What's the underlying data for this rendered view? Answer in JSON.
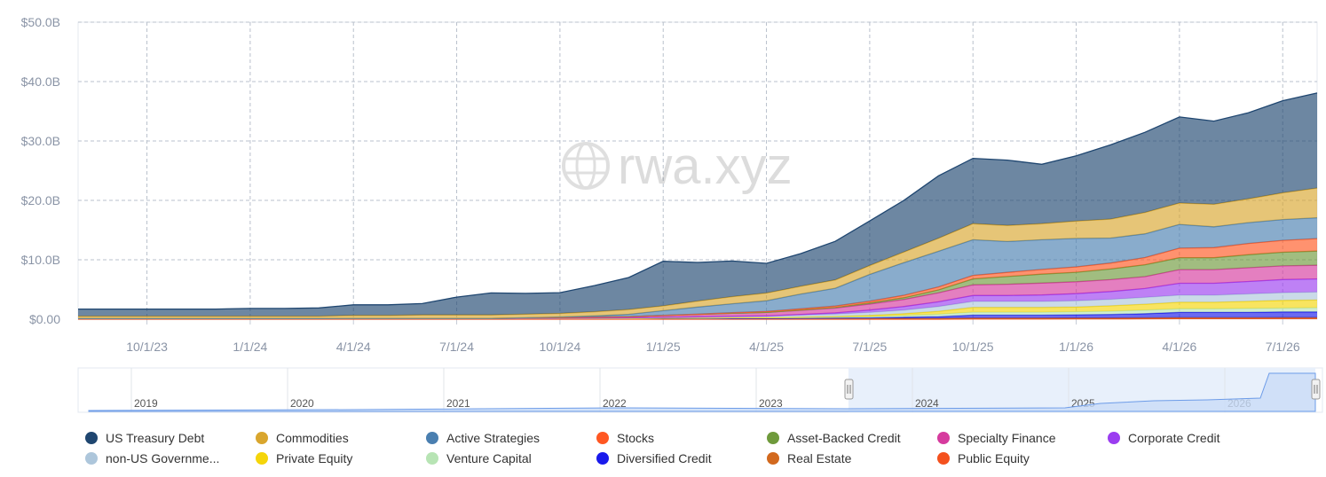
{
  "chart_data": {
    "type": "area",
    "stacked": true,
    "y_ticks": [
      "$0.00",
      "$10.0B",
      "$20.0B",
      "$30.0B",
      "$40.0B",
      "$50.0B"
    ],
    "ylim": [
      0,
      50
    ],
    "x_ticks": [
      "10/1/23",
      "1/1/24",
      "4/1/24",
      "7/1/24",
      "10/1/24",
      "1/1/25",
      "4/1/25",
      "7/1/25",
      "10/1/25",
      "1/1/26",
      "4/1/26",
      "7/1/26"
    ],
    "grid": true,
    "legend_position": "bottom",
    "watermark": "rwa.xyz",
    "navigator_years": [
      "2019",
      "2020",
      "2021",
      "2022",
      "2023",
      "2024",
      "2025",
      "2026"
    ],
    "x": [
      "8/1/23",
      "9/1/23",
      "10/1/23",
      "11/1/23",
      "12/1/23",
      "1/1/24",
      "2/1/24",
      "3/1/24",
      "4/1/24",
      "5/1/24",
      "6/1/24",
      "7/1/24",
      "8/1/24",
      "9/1/24",
      "10/1/24",
      "11/1/24",
      "12/1/24",
      "1/1/25",
      "2/1/25",
      "3/1/25",
      "4/1/25",
      "5/1/25",
      "6/1/25",
      "7/1/25",
      "8/1/25",
      "9/1/25",
      "10/1/25",
      "11/1/25",
      "12/1/25",
      "1/1/26",
      "2/1/26",
      "3/1/26",
      "4/1/26",
      "5/1/26",
      "6/1/26",
      "7/1/26",
      "8/1/26"
    ],
    "series": [
      {
        "name": "Public Equity",
        "color": "#f4511e",
        "values": [
          0,
          0,
          0,
          0,
          0,
          0,
          0,
          0,
          0,
          0,
          0,
          0,
          0,
          0,
          0,
          0,
          0,
          0,
          0,
          0,
          0,
          0,
          0,
          0,
          0,
          0,
          0.05,
          0.05,
          0.05,
          0.06,
          0.06,
          0.08,
          0.1,
          0.1,
          0.1,
          0.12,
          0.12
        ]
      },
      {
        "name": "Real Estate",
        "color": "#d2691e",
        "values": [
          0.1,
          0.1,
          0.1,
          0.1,
          0.1,
          0.1,
          0.1,
          0.1,
          0.12,
          0.12,
          0.12,
          0.12,
          0.12,
          0.12,
          0.12,
          0.12,
          0.12,
          0.12,
          0.12,
          0.12,
          0.12,
          0.12,
          0.13,
          0.13,
          0.13,
          0.13,
          0.13,
          0.13,
          0.13,
          0.14,
          0.14,
          0.14,
          0.15,
          0.15,
          0.15,
          0.15,
          0.15
        ]
      },
      {
        "name": "Diversified Credit",
        "color": "#1a1aeb",
        "values": [
          0,
          0,
          0,
          0,
          0,
          0,
          0,
          0,
          0,
          0,
          0,
          0,
          0,
          0,
          0,
          0,
          0,
          0,
          0,
          0.02,
          0.03,
          0.05,
          0.08,
          0.1,
          0.2,
          0.3,
          0.5,
          0.5,
          0.5,
          0.55,
          0.6,
          0.7,
          0.9,
          0.9,
          0.9,
          0.95,
          0.95
        ]
      },
      {
        "name": "Venture Capital",
        "color": "#b7e4b4",
        "values": [
          0,
          0,
          0,
          0,
          0,
          0,
          0,
          0,
          0,
          0,
          0,
          0,
          0,
          0,
          0,
          0,
          0,
          0.05,
          0.08,
          0.1,
          0.1,
          0.12,
          0.15,
          0.2,
          0.3,
          0.4,
          0.5,
          0.5,
          0.5,
          0.5,
          0.55,
          0.6,
          0.6,
          0.6,
          0.65,
          0.65,
          0.7
        ]
      },
      {
        "name": "Private Equity",
        "color": "#f5d50a",
        "values": [
          0,
          0,
          0,
          0,
          0,
          0,
          0,
          0,
          0,
          0,
          0,
          0,
          0,
          0,
          0,
          0,
          0,
          0,
          0,
          0,
          0,
          0.05,
          0.1,
          0.2,
          0.3,
          0.5,
          0.8,
          0.8,
          0.8,
          0.8,
          0.9,
          1.0,
          1.1,
          1.1,
          1.2,
          1.3,
          1.3
        ]
      },
      {
        "name": "non-US Government Debt",
        "color": "#adc6db",
        "values": [
          0,
          0,
          0,
          0,
          0,
          0,
          0,
          0,
          0,
          0,
          0,
          0,
          0,
          0.02,
          0.05,
          0.08,
          0.1,
          0.15,
          0.2,
          0.25,
          0.3,
          0.35,
          0.4,
          0.5,
          0.6,
          0.8,
          1.0,
          1.0,
          1.0,
          1.05,
          1.1,
          1.15,
          1.2,
          1.2,
          1.25,
          1.3,
          1.35
        ]
      },
      {
        "name": "Corporate Credit",
        "color": "#9b3df0",
        "values": [
          0,
          0,
          0,
          0,
          0,
          0,
          0,
          0,
          0,
          0,
          0,
          0,
          0,
          0,
          0,
          0,
          0,
          0,
          0,
          0,
          0,
          0.1,
          0.2,
          0.4,
          0.6,
          0.8,
          1.0,
          1.0,
          1.1,
          1.2,
          1.3,
          1.5,
          2.0,
          2.0,
          2.1,
          2.2,
          2.2
        ]
      },
      {
        "name": "Specialty Finance",
        "color": "#d63b9e",
        "values": [
          0,
          0,
          0,
          0,
          0,
          0,
          0,
          0,
          0,
          0,
          0,
          0,
          0,
          0.05,
          0.1,
          0.15,
          0.2,
          0.3,
          0.4,
          0.5,
          0.6,
          0.7,
          0.8,
          1.0,
          1.2,
          1.5,
          1.8,
          1.9,
          2.0,
          2.0,
          2.0,
          2.0,
          2.3,
          2.3,
          2.3,
          2.3,
          2.3
        ]
      },
      {
        "name": "Asset-Backed Credit",
        "color": "#6f9a3c",
        "values": [
          0,
          0,
          0,
          0,
          0,
          0,
          0,
          0,
          0,
          0,
          0,
          0,
          0,
          0,
          0,
          0,
          0,
          0,
          0,
          0,
          0,
          0.05,
          0.1,
          0.2,
          0.3,
          0.5,
          1.0,
          1.3,
          1.5,
          1.6,
          1.8,
          2.0,
          2.0,
          2.0,
          2.2,
          2.3,
          2.4
        ]
      },
      {
        "name": "Stocks",
        "color": "#ff5722",
        "values": [
          0,
          0,
          0,
          0,
          0,
          0,
          0,
          0,
          0,
          0,
          0,
          0,
          0,
          0,
          0,
          0,
          0,
          0.02,
          0.05,
          0.1,
          0.15,
          0.2,
          0.25,
          0.3,
          0.4,
          0.5,
          0.6,
          0.7,
          0.8,
          0.9,
          1.0,
          1.2,
          1.6,
          1.7,
          1.9,
          2.0,
          2.1
        ]
      },
      {
        "name": "Active Strategies",
        "color": "#4a7fb0",
        "values": [
          0,
          0,
          0,
          0,
          0,
          0,
          0,
          0,
          0,
          0,
          0,
          0,
          0,
          0.05,
          0.1,
          0.2,
          0.4,
          0.8,
          1.2,
          1.5,
          1.8,
          2.5,
          3.0,
          4.5,
          5.5,
          6.0,
          6.0,
          5.2,
          5.0,
          4.8,
          4.2,
          4.0,
          4.0,
          3.5,
          3.5,
          3.5,
          3.5
        ]
      },
      {
        "name": "Commodities",
        "color": "#d9a62e",
        "values": [
          0.4,
          0.4,
          0.4,
          0.4,
          0.4,
          0.4,
          0.4,
          0.4,
          0.5,
          0.5,
          0.6,
          0.6,
          0.6,
          0.6,
          0.6,
          0.7,
          0.8,
          0.8,
          1.0,
          1.2,
          1.3,
          1.3,
          1.4,
          1.5,
          1.8,
          2.2,
          2.7,
          2.7,
          2.7,
          2.9,
          3.2,
          3.6,
          3.6,
          3.8,
          4.0,
          4.5,
          5.0
        ]
      },
      {
        "name": "US Treasury Debt",
        "color": "#1f4670",
        "values": [
          1.2,
          1.2,
          1.2,
          1.2,
          1.2,
          1.3,
          1.3,
          1.4,
          1.8,
          1.8,
          1.9,
          3.0,
          3.7,
          3.5,
          3.5,
          4.4,
          5.4,
          7.5,
          6.5,
          6.0,
          5.0,
          5.5,
          6.5,
          7.5,
          8.7,
          10.5,
          11.0,
          11.0,
          10.0,
          11.0,
          12.5,
          13.5,
          14.5,
          14.0,
          14.5,
          15.5,
          16.0
        ]
      }
    ]
  },
  "legend": {
    "rows": [
      [
        "US Treasury Debt",
        "Commodities",
        "Active Strategies",
        "Stocks",
        "Asset-Backed Credit",
        "Specialty Finance",
        "Corporate Credit"
      ],
      [
        "non-US Governme...",
        "Private Equity",
        "Venture Capital",
        "Diversified Credit",
        "Real Estate",
        "Public Equity"
      ]
    ],
    "colors": [
      [
        "#1f4670",
        "#d9a62e",
        "#4a7fb0",
        "#ff5722",
        "#6f9a3c",
        "#d63b9e",
        "#9b3df0"
      ],
      [
        "#adc6db",
        "#f5d50a",
        "#b7e4b4",
        "#1a1aeb",
        "#d2691e",
        "#f4511e"
      ]
    ]
  }
}
